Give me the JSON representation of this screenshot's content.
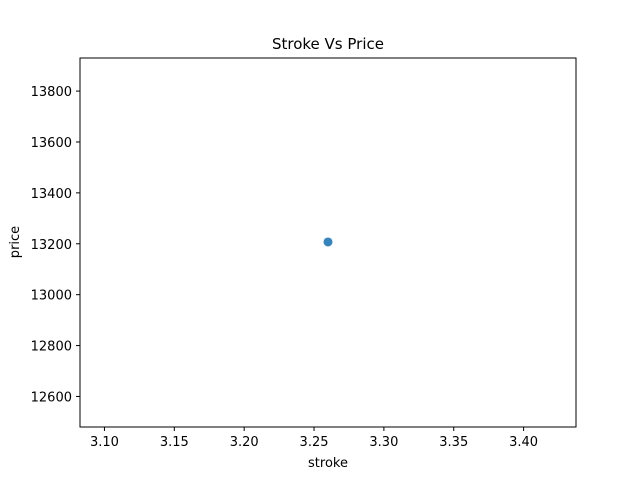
{
  "chart_data": {
    "type": "scatter",
    "title": "Stroke Vs Price",
    "xlabel": "stroke",
    "ylabel": "price",
    "xlim": [
      3.0825,
      3.4375
    ],
    "ylim": [
      12480,
      13930
    ],
    "x_ticks": [
      3.1,
      3.15,
      3.2,
      3.25,
      3.3,
      3.35,
      3.4
    ],
    "x_tick_labels": [
      "3.10",
      "3.15",
      "3.20",
      "3.25",
      "3.30",
      "3.35",
      "3.40"
    ],
    "y_ticks": [
      12600,
      12800,
      13000,
      13200,
      13400,
      13600,
      13800
    ],
    "y_tick_labels": [
      "12600",
      "12800",
      "13000",
      "13200",
      "13400",
      "13600",
      "13800"
    ],
    "grid": false,
    "series": [
      {
        "color": "#1f77b4",
        "points": [
          {
            "x": 3.26,
            "y": 13207
          }
        ]
      }
    ]
  }
}
